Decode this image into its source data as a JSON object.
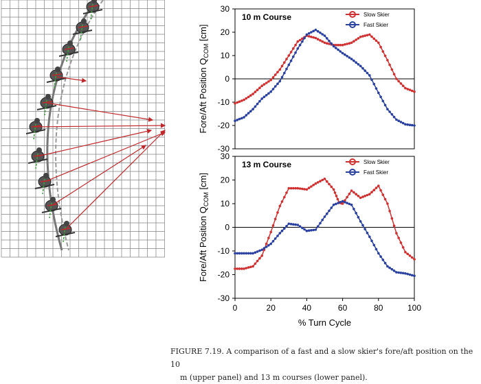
{
  "colors": {
    "slow": "#d03030",
    "fast": "#2a40a0",
    "grid_line": "#808080",
    "zero_line": "#000000",
    "force_arrow": "#c0282c",
    "green_vector": "#3aa33a"
  },
  "caption": {
    "line1": "FIGURE 7.19. A comparison of a fast and a slow skier's fore/aft position on the 10",
    "line2": "m (upper panel) and 13 m courses (lower panel)."
  },
  "illustration": {
    "description_icon": "skier-sequence-illustration"
  },
  "chart_data": [
    {
      "type": "line",
      "title": "10 m Course",
      "xlabel": "",
      "ylabel": "Fore/Aft Position Q_COM [cm]",
      "ylabel_main": "Fore/Aft Position Q",
      "ylabel_sub": "COM",
      "ylabel_unit": " [cm]",
      "xlim": [
        0,
        100
      ],
      "ylim": [
        -30,
        30
      ],
      "yticks": [
        -30,
        -20,
        -10,
        0,
        10,
        20,
        30
      ],
      "xticks": [],
      "legend": "top-right",
      "grid": false,
      "series": [
        {
          "name": "Slow Skier",
          "color_key": "slow",
          "x": [
            0,
            5,
            10,
            15,
            20,
            25,
            30,
            35,
            40,
            45,
            50,
            55,
            60,
            65,
            70,
            75,
            80,
            85,
            90,
            95,
            100
          ],
          "y": [
            -10.5,
            -9,
            -6.5,
            -3,
            -0.5,
            4,
            10,
            16,
            18.5,
            17.5,
            15.5,
            14.5,
            14.5,
            15.5,
            18,
            19,
            15.5,
            8,
            0,
            -4,
            -5.5
          ]
        },
        {
          "name": "Fast Skier",
          "color_key": "fast",
          "x": [
            0,
            5,
            10,
            15,
            20,
            25,
            30,
            35,
            40,
            45,
            50,
            55,
            60,
            65,
            70,
            75,
            80,
            85,
            90,
            95,
            100
          ],
          "y": [
            -18,
            -16.5,
            -13,
            -8.5,
            -5.5,
            -1,
            6,
            13,
            19,
            21,
            18.5,
            14,
            11,
            8.5,
            5.5,
            1.5,
            -6,
            -13,
            -17.5,
            -19.5,
            -20
          ]
        }
      ]
    },
    {
      "type": "line",
      "title": "13 m Course",
      "xlabel": "% Turn Cycle",
      "ylabel": "Fore/Aft Position Q_COM [cm]",
      "ylabel_main": "Fore/Aft Position Q",
      "ylabel_sub": "COM",
      "ylabel_unit": " [cm]",
      "xlim": [
        0,
        100
      ],
      "ylim": [
        -30,
        30
      ],
      "yticks": [
        -30,
        -20,
        -10,
        0,
        10,
        20,
        30
      ],
      "xticks": [
        0,
        20,
        40,
        60,
        80,
        100
      ],
      "legend": "top-right",
      "grid": false,
      "series": [
        {
          "name": "Slow Skier",
          "color_key": "slow",
          "x": [
            0,
            5,
            10,
            15,
            20,
            25,
            30,
            35,
            40,
            45,
            50,
            55,
            58,
            60,
            65,
            70,
            75,
            80,
            85,
            90,
            95,
            100
          ],
          "y": [
            -17.5,
            -17.5,
            -16.5,
            -12,
            -2,
            9,
            16.5,
            16.5,
            16,
            18.5,
            20.5,
            16,
            10.5,
            10,
            15.5,
            12.5,
            14,
            17.5,
            10,
            -2.5,
            -10.5,
            -13.5
          ]
        },
        {
          "name": "Fast Skier",
          "color_key": "fast",
          "x": [
            0,
            5,
            10,
            15,
            20,
            25,
            30,
            35,
            40,
            45,
            50,
            55,
            60,
            65,
            70,
            75,
            80,
            85,
            90,
            95,
            100
          ],
          "y": [
            -11,
            -11,
            -11,
            -9.5,
            -7,
            -2.5,
            1.5,
            1,
            -1.5,
            -1,
            4.5,
            9.5,
            11,
            9.5,
            2.5,
            -4,
            -11,
            -16.5,
            -19,
            -19.5,
            -20.5
          ]
        }
      ]
    }
  ]
}
